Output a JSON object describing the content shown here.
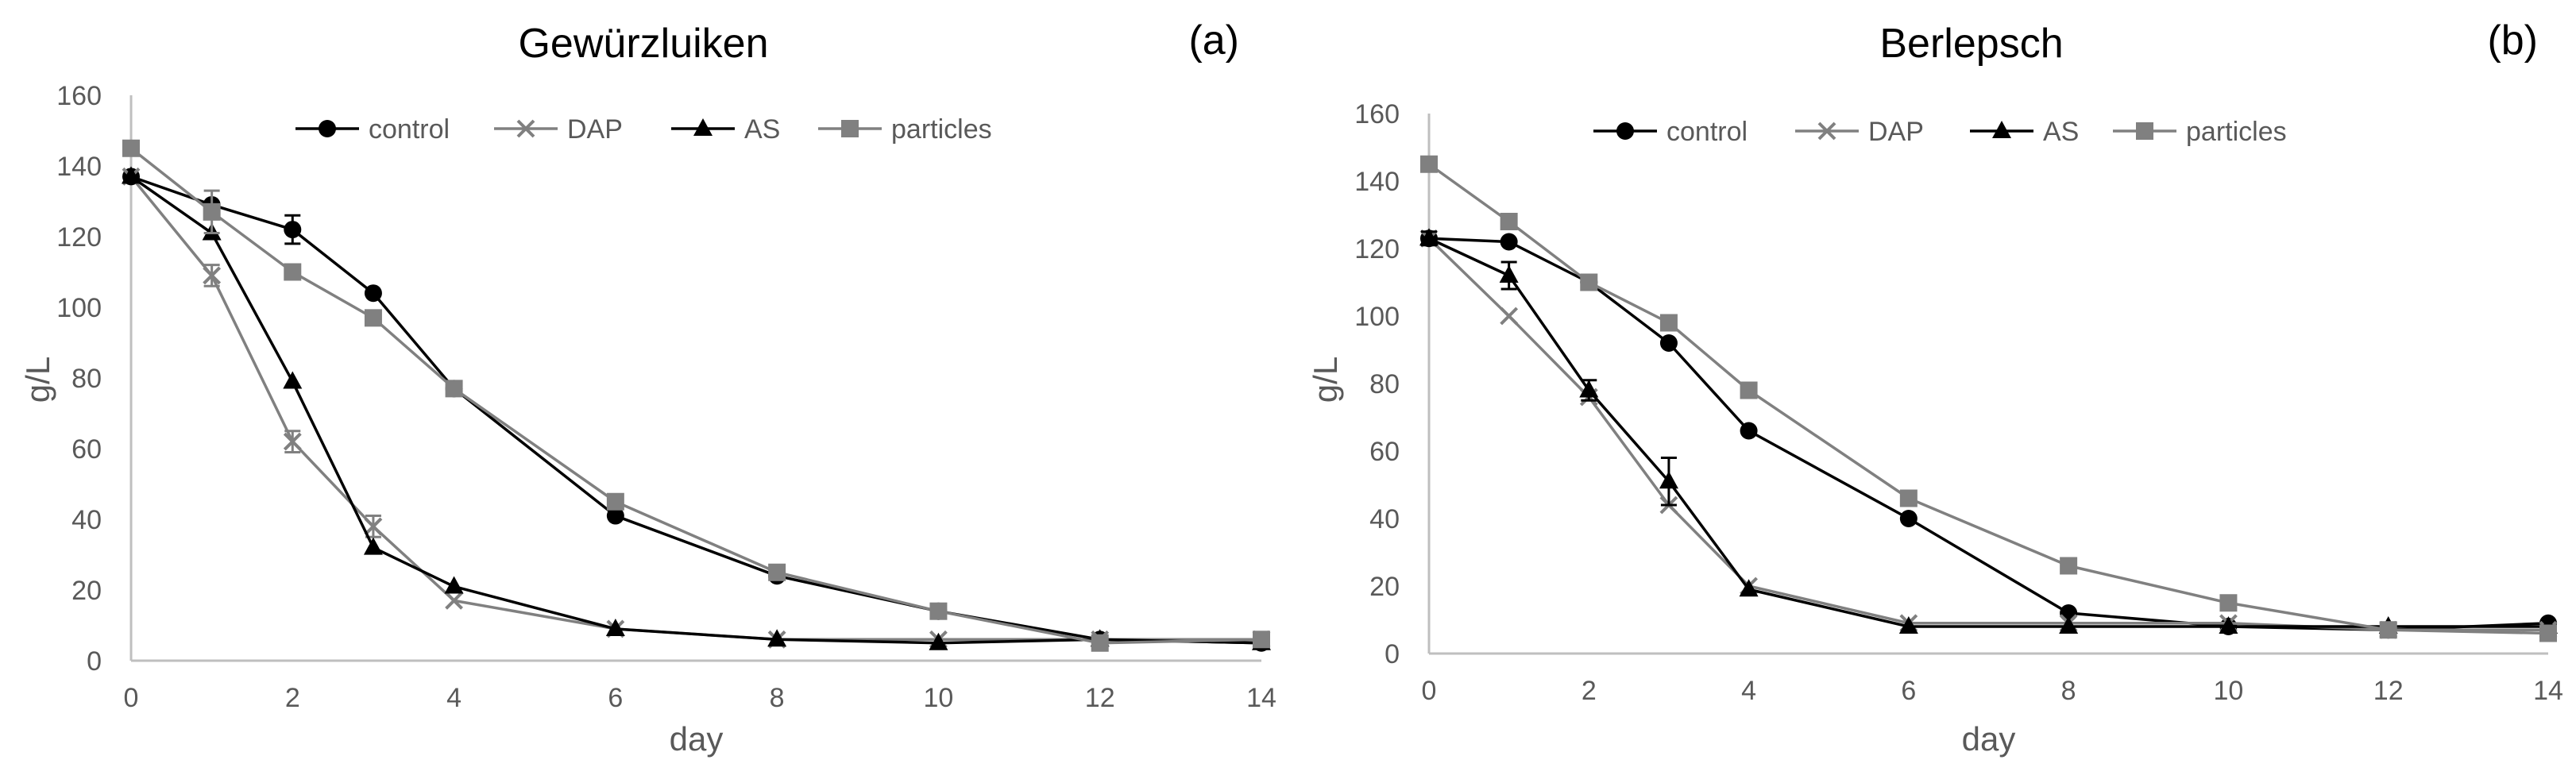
{
  "figure": {
    "panels": [
      "a",
      "b"
    ]
  },
  "chart_data": [
    {
      "type": "line",
      "title": "Gewürzluiken",
      "panel_label": "(a)",
      "xlabel": "day",
      "ylabel": "g/L",
      "x": [
        0,
        1,
        2,
        3,
        4,
        6,
        8,
        10,
        12,
        14
      ],
      "xlim": [
        0,
        14
      ],
      "ylim": [
        0,
        160
      ],
      "xticks": [
        "0",
        "2",
        "4",
        "6",
        "8",
        "10",
        "12",
        "14"
      ],
      "yticks": [
        "0",
        "20",
        "40",
        "60",
        "80",
        "100",
        "120",
        "140",
        "160"
      ],
      "grid": false,
      "legend": "top-center",
      "series": [
        {
          "name": "control",
          "color": "#000000",
          "marker": "circle",
          "values": [
            137,
            129,
            122,
            104,
            77,
            41,
            24,
            14,
            6,
            5
          ],
          "errors": [
            0,
            0,
            4,
            0,
            0,
            0,
            0,
            0,
            0,
            0
          ]
        },
        {
          "name": "DAP",
          "color": "#808080",
          "marker": "x",
          "values": [
            137,
            109,
            62,
            38,
            17,
            9,
            6,
            6,
            6,
            6
          ],
          "errors": [
            0,
            3,
            3,
            3,
            0,
            0,
            0,
            0,
            0,
            0
          ]
        },
        {
          "name": "AS",
          "color": "#000000",
          "marker": "triangle",
          "values": [
            137,
            121,
            79,
            32,
            21,
            9,
            6,
            5,
            6,
            5
          ],
          "errors": [
            0,
            0,
            0,
            0,
            0,
            0,
            0,
            0,
            0,
            0
          ]
        },
        {
          "name": "particles",
          "color": "#808080",
          "marker": "square",
          "values": [
            145,
            127,
            110,
            97,
            77,
            45,
            25,
            14,
            5,
            6
          ],
          "errors": [
            0,
            6,
            0,
            0,
            0,
            0,
            0,
            0,
            0,
            0
          ]
        }
      ]
    },
    {
      "type": "line",
      "title": "Berlepsch",
      "panel_label": "(b)",
      "xlabel": "day",
      "ylabel": "g/L",
      "x": [
        0,
        1,
        2,
        3,
        4,
        6,
        8,
        10,
        12,
        14
      ],
      "xlim": [
        0,
        14
      ],
      "ylim": [
        0,
        160
      ],
      "xticks": [
        "0",
        "2",
        "4",
        "6",
        "8",
        "10",
        "12",
        "14"
      ],
      "yticks": [
        "0",
        "20",
        "40",
        "60",
        "80",
        "100",
        "120",
        "140",
        "160"
      ],
      "grid": false,
      "legend": "top-center",
      "series": [
        {
          "name": "control",
          "color": "#000000",
          "marker": "circle",
          "values": [
            123,
            122,
            110,
            92,
            66,
            40,
            12,
            8,
            7,
            9
          ],
          "errors": [
            0,
            0,
            0,
            0,
            0,
            0,
            0,
            0,
            0,
            0
          ]
        },
        {
          "name": "DAP",
          "color": "#808080",
          "marker": "x",
          "values": [
            123,
            100,
            76,
            44,
            20,
            9,
            9,
            9,
            7,
            7
          ],
          "errors": [
            0,
            0,
            0,
            0,
            0,
            0,
            0,
            0,
            0,
            0
          ]
        },
        {
          "name": "AS",
          "color": "#000000",
          "marker": "triangle",
          "values": [
            123,
            112,
            78,
            51,
            19,
            8,
            8,
            8,
            8,
            8
          ],
          "errors": [
            2,
            4,
            3,
            7,
            0,
            0,
            0,
            0,
            0,
            0
          ]
        },
        {
          "name": "particles",
          "color": "#808080",
          "marker": "square",
          "values": [
            145,
            128,
            110,
            98,
            78,
            46,
            26,
            15,
            7,
            6
          ],
          "errors": [
            0,
            0,
            0,
            0,
            0,
            0,
            0,
            0,
            0,
            0
          ]
        }
      ]
    }
  ]
}
